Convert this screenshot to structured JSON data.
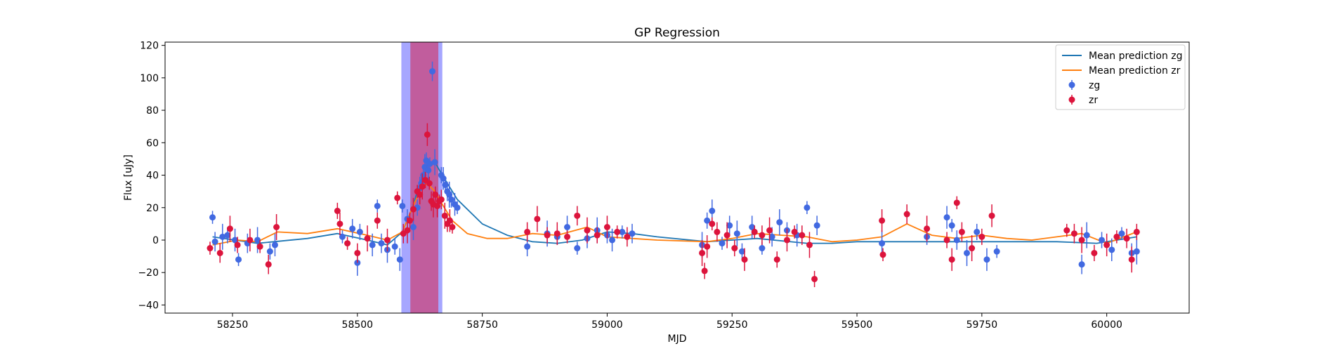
{
  "chart_data": {
    "type": "scatter",
    "title": "GP Regression",
    "xlabel": "MJD",
    "ylabel": "Flux [uJy]",
    "xlim": [
      58115,
      60165
    ],
    "ylim": [
      -45,
      122
    ],
    "xticks": [
      58250,
      58500,
      58750,
      59000,
      59250,
      59500,
      59750,
      60000
    ],
    "yticks": [
      -40,
      -20,
      0,
      20,
      40,
      60,
      80,
      100,
      120
    ],
    "grid": false,
    "legend": "top-right",
    "shaded_regions": [
      {
        "x0": 58588,
        "x1": 58670,
        "color": "#0000ff",
        "opacity": 0.35
      },
      {
        "x0": 58606,
        "x1": 58662,
        "color": "#dc143c",
        "opacity": 0.5
      }
    ],
    "series": [
      {
        "name": "Mean prediction zg",
        "kind": "line",
        "color": "#1f77b4",
        "x": [
          58210,
          58300,
          58400,
          58460,
          58520,
          58560,
          58590,
          58610,
          58625,
          58640,
          58655,
          58670,
          58700,
          58750,
          58800,
          58850,
          58900,
          58950,
          59000,
          59050,
          59100,
          59200,
          59250,
          59300,
          59400,
          59450,
          59500,
          59600,
          59700,
          59800,
          59900,
          59980,
          60060
        ],
        "y": [
          2,
          -2,
          1,
          4,
          0,
          -3,
          5,
          20,
          35,
          46,
          48,
          40,
          25,
          10,
          3,
          -1,
          -2,
          0,
          5,
          4,
          2,
          -1,
          0,
          1,
          -2,
          -2,
          -1,
          -1,
          -1,
          -1,
          -1,
          -2,
          2
        ]
      },
      {
        "name": "Mean prediction zr",
        "kind": "line",
        "color": "#ff7f0e",
        "x": [
          58210,
          58260,
          58300,
          58340,
          58400,
          58460,
          58520,
          58560,
          58590,
          58610,
          58625,
          58640,
          58655,
          58670,
          58690,
          58720,
          58760,
          58800,
          58850,
          58900,
          58960,
          59000,
          59050,
          59100,
          59200,
          59250,
          59300,
          59350,
          59400,
          59450,
          59500,
          59550,
          59600,
          59650,
          59700,
          59750,
          59800,
          59850,
          59900,
          59950,
          60000,
          60060
        ],
        "y": [
          -3,
          0,
          -1,
          5,
          4,
          7,
          3,
          0,
          5,
          20,
          30,
          35,
          30,
          22,
          12,
          4,
          1,
          1,
          4,
          3,
          8,
          2,
          1,
          0,
          -1,
          1,
          4,
          3,
          2,
          -1,
          0,
          2,
          10,
          3,
          1,
          3,
          1,
          0,
          2,
          4,
          -2,
          5
        ]
      },
      {
        "name": "zg",
        "kind": "errorbar",
        "color": "#4169e1",
        "x": [
          58210,
          58215,
          58230,
          58240,
          58255,
          58262,
          58280,
          58300,
          58325,
          58335,
          58470,
          58490,
          58500,
          58505,
          58530,
          58540,
          58548,
          58560,
          58575,
          58585,
          58590,
          58600,
          58612,
          58620,
          58625,
          58628,
          58632,
          58635,
          58638,
          58642,
          58645,
          58650,
          58655,
          58668,
          58672,
          58676,
          58680,
          58684,
          58688,
          58695,
          58700,
          58840,
          58880,
          58900,
          58920,
          58940,
          58960,
          58980,
          59000,
          59010,
          59030,
          59050,
          59190,
          59200,
          59210,
          59230,
          59245,
          59260,
          59270,
          59290,
          59310,
          59330,
          59345,
          59360,
          59380,
          59400,
          59420,
          59550,
          59640,
          59680,
          59690,
          59700,
          59720,
          59740,
          59760,
          59780,
          59950,
          59960,
          59990,
          60010,
          60030,
          60050,
          60060
        ],
        "y": [
          14,
          -1,
          2,
          3,
          0,
          -12,
          -2,
          0,
          -7,
          -3,
          2,
          7,
          -14,
          5,
          -3,
          21,
          -2,
          -6,
          -4,
          -12,
          21,
          13,
          8,
          20,
          32,
          35,
          40,
          45,
          49,
          43,
          47,
          104,
          48,
          40,
          38,
          34,
          30,
          28,
          25,
          22,
          20,
          -4,
          4,
          2,
          8,
          -5,
          1,
          6,
          3,
          0,
          5,
          4,
          -3,
          12,
          18,
          -2,
          9,
          4,
          -7,
          8,
          -5,
          2,
          11,
          6,
          3,
          20,
          9,
          -2,
          2,
          14,
          9,
          0,
          -8,
          5,
          -12,
          -7,
          -15,
          3,
          0,
          -6,
          4,
          -8,
          -7
        ]
      },
      {
        "name": "zr",
        "kind": "errorbar",
        "color": "#dc143c",
        "x": [
          58205,
          58225,
          58245,
          58260,
          58285,
          58305,
          58322,
          58338,
          58460,
          58465,
          58480,
          58500,
          58520,
          58540,
          58560,
          58580,
          58592,
          58600,
          58605,
          58612,
          58620,
          58625,
          58630,
          58636,
          58640,
          58644,
          58648,
          58652,
          58656,
          58660,
          58664,
          58668,
          58675,
          58680,
          58685,
          58690,
          58840,
          58860,
          58880,
          58900,
          58920,
          58940,
          58960,
          58980,
          59000,
          59020,
          59040,
          59190,
          59195,
          59200,
          59210,
          59220,
          59240,
          59255,
          59275,
          59295,
          59310,
          59325,
          59340,
          59360,
          59375,
          59390,
          59405,
          59415,
          59550,
          59552,
          59600,
          59640,
          59680,
          59690,
          59700,
          59710,
          59730,
          59750,
          59770,
          59920,
          59935,
          59950,
          59975,
          60000,
          60020,
          60040,
          60050,
          60060
        ],
        "y": [
          -5,
          -8,
          7,
          -3,
          0,
          -4,
          -15,
          8,
          18,
          10,
          -2,
          -8,
          1,
          12,
          0,
          26,
          4,
          6,
          12,
          19,
          30,
          28,
          33,
          37,
          65,
          35,
          24,
          22,
          28,
          21,
          24,
          25,
          15,
          10,
          12,
          8,
          5,
          13,
          3,
          4,
          2,
          15,
          6,
          3,
          8,
          5,
          2,
          -8,
          -19,
          -4,
          10,
          5,
          3,
          -5,
          -12,
          5,
          3,
          6,
          -12,
          0,
          5,
          3,
          -3,
          -24,
          12,
          -9,
          16,
          7,
          0,
          -12,
          23,
          5,
          -5,
          2,
          15,
          6,
          4,
          0,
          -8,
          -3,
          2,
          1,
          -12,
          5
        ]
      }
    ]
  }
}
